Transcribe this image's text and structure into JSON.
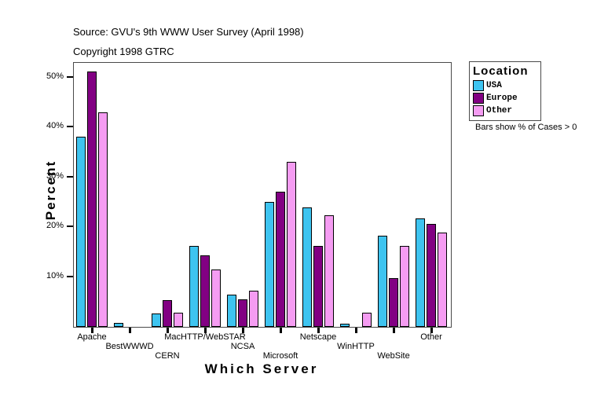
{
  "header": {
    "source_line": "Source: GVU's 9th WWW User Survey (April 1998)",
    "copyright_line": "Copyright 1998 GTRC"
  },
  "chart_data": {
    "type": "bar",
    "title": "",
    "xlabel": "Which Server",
    "ylabel": "Percent",
    "ylim": [
      0,
      53
    ],
    "yticks": [
      10,
      20,
      30,
      40,
      50
    ],
    "ytick_suffix": "%",
    "grid": false,
    "categories": [
      "Apache",
      "BestWWWD",
      "CERN",
      "MacHTTP/WebSTAR",
      "NCSA",
      "Microsoft",
      "Netscape",
      "WinHTTP",
      "WebSite",
      "Other"
    ],
    "category_label_rows": [
      0,
      1,
      2,
      0,
      1,
      2,
      0,
      1,
      2,
      0
    ],
    "series": [
      {
        "name": "USA",
        "color": "#3EC4F0",
        "values": [
          38.2,
          0.8,
          2.7,
          16.3,
          6.5,
          25.1,
          23.9,
          0.7,
          18.3,
          21.7
        ]
      },
      {
        "name": "Europe",
        "color": "#820083",
        "values": [
          51.2,
          0,
          5.4,
          14.4,
          5.5,
          27.2,
          16.2,
          0,
          9.8,
          20.7
        ]
      },
      {
        "name": "Other",
        "color": "#F59CF2",
        "values": [
          43.1,
          0,
          2.9,
          11.5,
          7.3,
          33.2,
          22.4,
          2.9,
          16.2,
          18.9
        ]
      }
    ],
    "legend": {
      "title": "Location",
      "position": "top-right-outside"
    },
    "note": "Bars show % of Cases > 0"
  }
}
